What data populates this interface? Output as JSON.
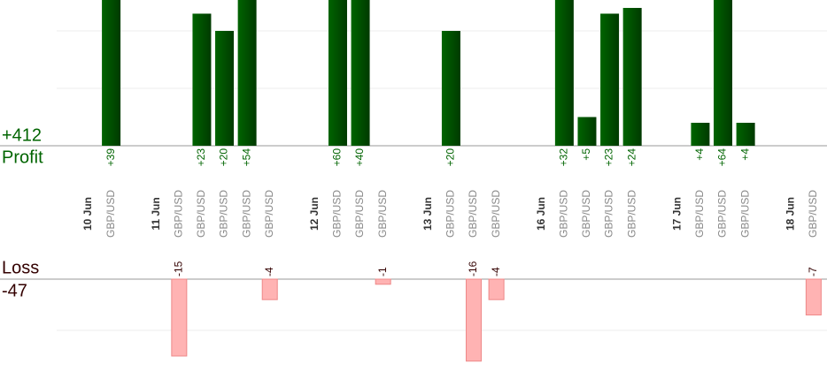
{
  "chart_data": {
    "type": "bar",
    "categories": [
      "10 Jun",
      "GBP/USD",
      null,
      "11 Jun",
      "GBP/USD",
      "GBP/USD",
      "GBP/USD",
      "GBP/USD",
      "GBP/USD",
      null,
      "12 Jun",
      "GBP/USD",
      "GBP/USD",
      "GBP/USD",
      null,
      "13 Jun",
      "GBP/USD",
      "GBP/USD",
      "GBP/USD",
      null,
      "16 Jun",
      "GBP/USD",
      "GBP/USD",
      "GBP/USD",
      "GBP/USD",
      null,
      "17 Jun",
      "GBP/USD",
      "GBP/USD",
      "GBP/USD",
      null,
      "18 Jun",
      "GBP/USD"
    ],
    "date_categories": [
      0,
      3,
      10,
      15,
      20,
      26,
      31
    ],
    "series": [
      {
        "name": "Profit",
        "total_label": "+412",
        "color": "#006400",
        "values": [
          null,
          39,
          null,
          null,
          null,
          23,
          20,
          54,
          null,
          null,
          null,
          60,
          40,
          null,
          null,
          null,
          20,
          null,
          null,
          null,
          null,
          32,
          5,
          23,
          24,
          null,
          null,
          4,
          64,
          4,
          null,
          null,
          null
        ],
        "value_labels": [
          null,
          "+39",
          null,
          null,
          null,
          "+23",
          "+20",
          "+54",
          null,
          null,
          null,
          "+60",
          "+40",
          null,
          null,
          null,
          "+20",
          null,
          null,
          null,
          null,
          "+32",
          "+5",
          "+23",
          "+24",
          null,
          null,
          "+4",
          "+64",
          "+4",
          null,
          null,
          null
        ]
      },
      {
        "name": "Loss",
        "total_label": "-47",
        "color": "#ffb3b3",
        "axis": "y2",
        "values": [
          null,
          null,
          null,
          null,
          -15,
          null,
          null,
          null,
          -4,
          null,
          null,
          null,
          null,
          -1,
          null,
          null,
          null,
          -16,
          -4,
          null,
          null,
          null,
          null,
          null,
          null,
          null,
          null,
          null,
          null,
          null,
          null,
          null,
          -7
        ]
      }
    ],
    "ylim": [
      0,
      25.38
    ],
    "yticks": [
      10,
      20
    ],
    "y2lim": [
      -17.93,
      0
    ],
    "y2ticks": [
      -10
    ],
    "grid": true
  }
}
